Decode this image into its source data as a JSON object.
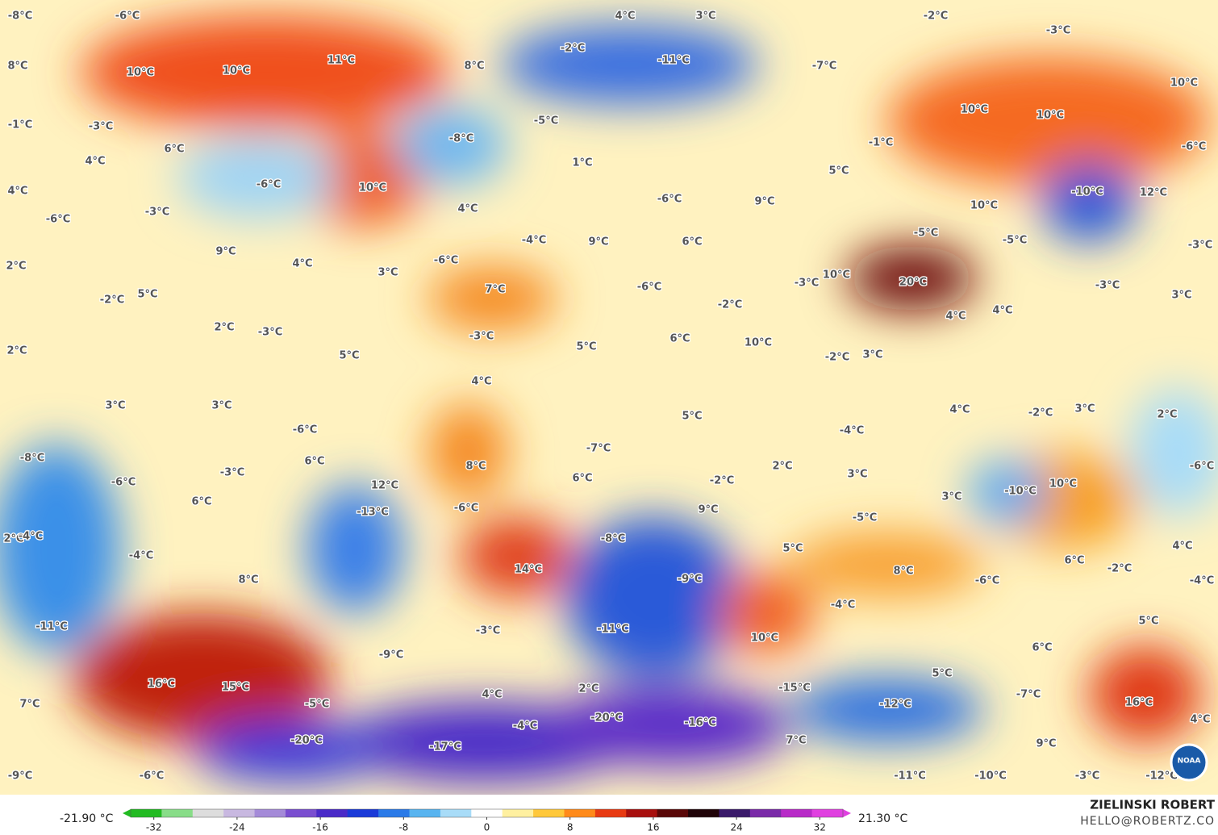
{
  "map": {
    "labels": [
      "-8°C",
      "-6°C",
      "4°C",
      "3°C",
      "-2°C",
      "-3°C",
      "8°C",
      "10°C",
      "10°C",
      "11°C",
      "8°C",
      "-2°C",
      "-11°C",
      "-7°C",
      "10°C",
      "-1°C",
      "-3°C",
      "6°C",
      "4°C",
      "-8°C",
      "-5°C",
      "10°C",
      "10°C",
      "-1°C",
      "-6°C",
      "1°C",
      "5°C",
      "4°C",
      "-6°C",
      "10°C",
      "-6°C",
      "9°C",
      "-10°C",
      "12°C",
      "-6°C",
      "-3°C",
      "4°C",
      "10°C",
      "-4°C",
      "9°C",
      "6°C",
      "-5°C",
      "-5°C",
      "-3°C",
      "9°C",
      "4°C",
      "-6°C",
      "2°C",
      "3°C",
      "10°C",
      "20°C",
      "-3°C",
      "-3°C",
      "-6°C",
      "7°C",
      "5°C",
      "-2°C",
      "-2°C",
      "3°C",
      "2°C",
      "-3°C",
      "-3°C",
      "4°C",
      "4°C",
      "6°C",
      "10°C",
      "5°C",
      "2°C",
      "5°C",
      "-2°C",
      "3°C",
      "4°C",
      "3°C",
      "3°C",
      "5°C",
      "4°C",
      "-2°C",
      "3°C",
      "2°C",
      "-4°C",
      "-6°C",
      "-7°C",
      "-8°C",
      "6°C",
      "8°C",
      "2°C",
      "-6°C",
      "-3°C",
      "-6°C",
      "12°C",
      "6°C",
      "-2°C",
      "3°C",
      "10°C",
      "-10°C",
      "3°C",
      "6°C",
      "-6°C",
      "-13°C",
      "9°C",
      "-5°C",
      "2°C",
      "-4°C",
      "-8°C",
      "5°C",
      "-4°C",
      "4°C",
      "6°C",
      "-2°C",
      "14°C",
      "8°C",
      "8°C",
      "-9°C",
      "-6°C",
      "-4°C",
      "-4°C",
      "-11°C",
      "-11°C",
      "-3°C",
      "5°C",
      "10°C",
      "6°C",
      "-9°C",
      "5°C",
      "16°C",
      "15°C",
      "2°C",
      "-15°C",
      "4°C",
      "-7°C",
      "7°C",
      "-5°C",
      "-12°C",
      "16°C",
      "-20°C",
      "-16°C",
      "4°C",
      "-4°C",
      "-20°C",
      "7°C",
      "9°C",
      "-17°C",
      "-9°C",
      "-6°C",
      "-11°C",
      "-10°C",
      "-3°C",
      "-12°C"
    ],
    "colorbar": {
      "min_label": "-21.90 °C",
      "max_label": "21.30 °C",
      "lim": [
        -35,
        35
      ],
      "ticks": [
        -32,
        -24,
        -16,
        -8,
        0,
        8,
        16,
        24,
        32
      ],
      "colors": [
        "#22bb22",
        "#88dd88",
        "#dddddd",
        "#c8b8e0",
        "#a48ad8",
        "#7a4ed0",
        "#4a2ac8",
        "#1a3ad8",
        "#2a7ae8",
        "#58b4f0",
        "#a8dcf8",
        "#ffffff",
        "#fff0a0",
        "#ffc83a",
        "#ff8a1a",
        "#e83a12",
        "#a8100e",
        "#5a0808",
        "#200408",
        "#3a1a6a",
        "#7a2aa8",
        "#b82ac8",
        "#e040e0"
      ]
    },
    "credit_name": "ZIELINSKI ROBERT",
    "credit_email": "HELLO@ROBERTZ.CO",
    "logo_text": "NOAA"
  }
}
